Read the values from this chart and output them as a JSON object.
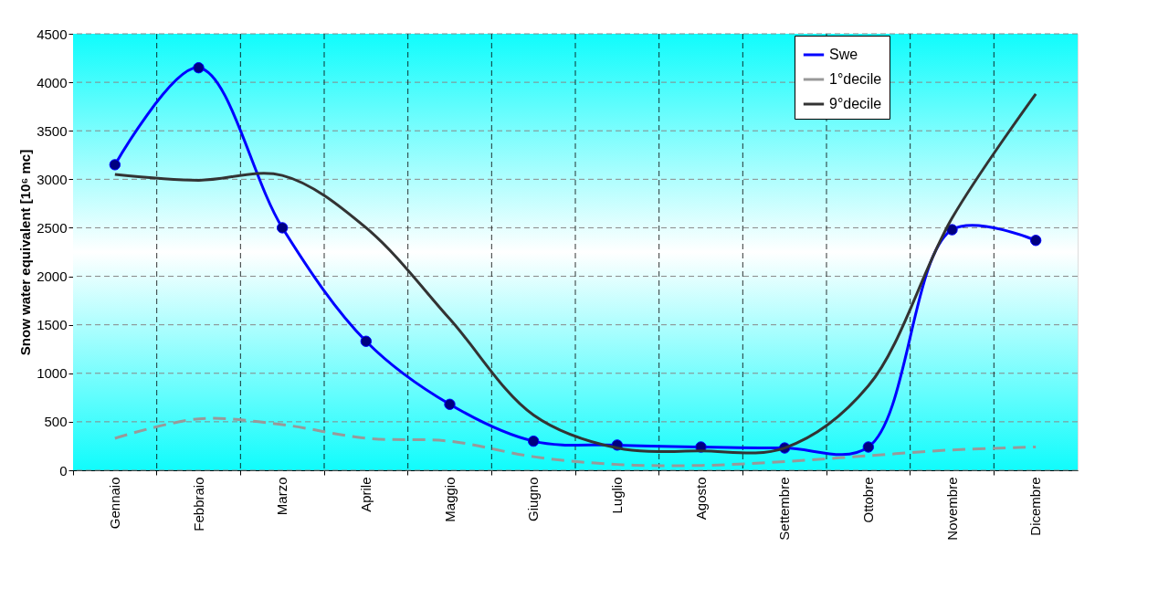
{
  "chart_data": {
    "type": "line",
    "ylabel": "Snow water equivalent [10⁶ mc]",
    "categories": [
      "Gennaio",
      "Febbraio",
      "Marzo",
      "Aprile",
      "Maggio",
      "Giugno",
      "Luglio",
      "Agosto",
      "Settembre",
      "Ottobre",
      "Novembre",
      "Dicembre"
    ],
    "series": [
      {
        "name": "Swe",
        "color": "#0000ff",
        "marker": "circle",
        "line_style": "solid",
        "values": [
          3150,
          4150,
          2500,
          1330,
          680,
          300,
          260,
          240,
          230,
          240,
          2480,
          2370
        ]
      },
      {
        "name": "1°decile",
        "color": "#999999",
        "marker": "none",
        "line_style": "dashed",
        "values": [
          330,
          530,
          470,
          330,
          300,
          140,
          60,
          50,
          90,
          150,
          210,
          240
        ]
      },
      {
        "name": "9°decile",
        "color": "#333333",
        "marker": "none",
        "line_style": "solid",
        "values": [
          3050,
          2990,
          3040,
          2500,
          1560,
          570,
          230,
          200,
          230,
          870,
          2600,
          3880
        ]
      }
    ],
    "ylim": [
      0,
      4500
    ],
    "yticks": [
      0,
      500,
      1000,
      1500,
      2000,
      2500,
      3000,
      3500,
      4000,
      4500
    ],
    "grid": true,
    "legend": "top right"
  }
}
